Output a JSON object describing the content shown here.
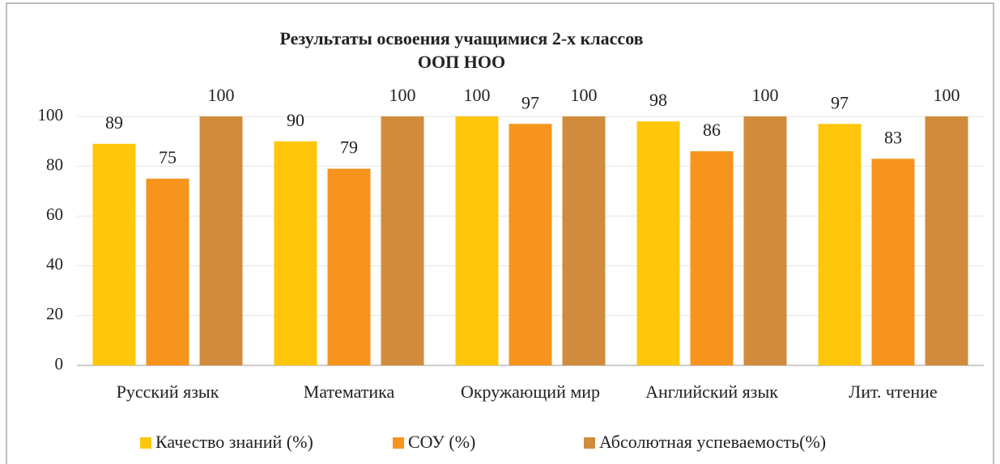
{
  "chart_data": {
    "type": "bar",
    "title": [
      "Результаты освоения учащимися 2-х классов",
      "ООП НОО"
    ],
    "categories": [
      "Русский язык",
      "Математика",
      "Окружающий мир",
      "Английский язык",
      "Лит. чтение"
    ],
    "series": [
      {
        "name": "Качество знаний (%)",
        "color": "#FFC60B",
        "values": [
          89,
          90,
          100,
          98,
          97
        ]
      },
      {
        "name": "СОУ (%)",
        "color": "#F7941D",
        "values": [
          75,
          79,
          97,
          86,
          83
        ]
      },
      {
        "name": "Абсолютная успеваемость(%)",
        "color": "#D08C3C",
        "values": [
          100,
          100,
          100,
          100,
          100
        ]
      }
    ],
    "ylim": [
      0,
      100
    ],
    "yticks": [
      0,
      20,
      40,
      60,
      80,
      100
    ],
    "grid": true,
    "legend": "bottom"
  }
}
